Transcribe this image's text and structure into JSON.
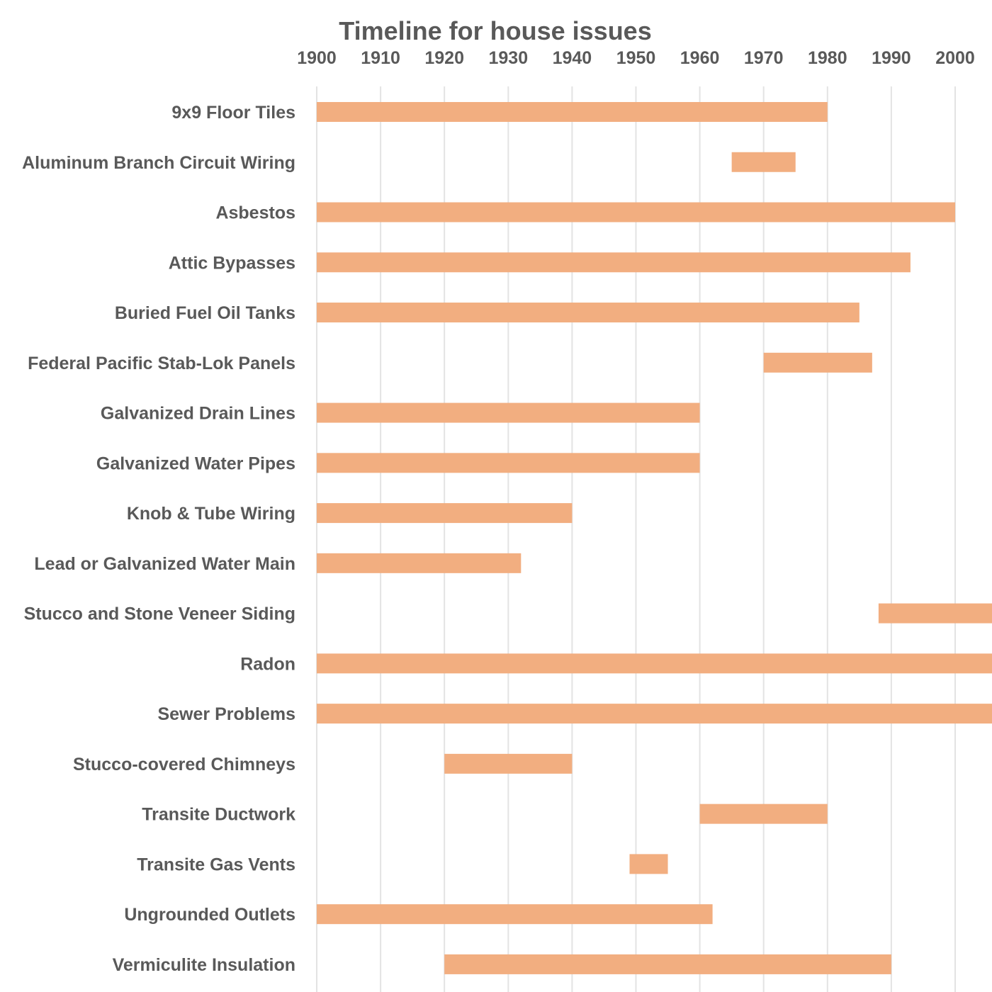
{
  "chart_data": {
    "type": "bar",
    "subtype": "floating-horizontal-bar (gantt)",
    "title": "Timeline for house issues",
    "xlabel": "",
    "ylabel": "",
    "x_axis_position": "top",
    "xlim": [
      1900,
      2005
    ],
    "x_ticks": [
      "1900",
      "1910",
      "1920",
      "1930",
      "1940",
      "1950",
      "1960",
      "1970",
      "1980",
      "1990",
      "2000"
    ],
    "grid": "vertical",
    "legend": "none",
    "bar_color": "#F2AE80",
    "categories": [
      "9x9 Floor Tiles",
      "Aluminum Branch Circuit Wiring",
      "Asbestos",
      "Attic Bypasses",
      "Buried Fuel Oil Tanks",
      "Federal Pacific Stab-Lok  Panels",
      "Galvanized Drain Lines",
      "Galvanized Water Pipes",
      "Knob & Tube Wiring",
      "Lead or Galvanized Water Main",
      "Stucco and Stone Veneer Siding",
      "Radon",
      "Sewer Problems",
      "Stucco-covered Chimneys",
      "Transite Ductwork",
      "Transite Gas Vents",
      "Ungrounded Outlets",
      "Vermiculite Insulation"
    ],
    "start": [
      1900,
      1965,
      1900,
      1900,
      1900,
      1970,
      1900,
      1900,
      1900,
      1900,
      1988,
      1900,
      1900,
      1920,
      1960,
      1949,
      1900,
      1920
    ],
    "end": [
      1980,
      1975,
      2000,
      1993,
      1985,
      1987,
      1960,
      1960,
      1940,
      1932,
      2010,
      2010,
      2010,
      1940,
      1980,
      1955,
      1962,
      1990
    ]
  }
}
